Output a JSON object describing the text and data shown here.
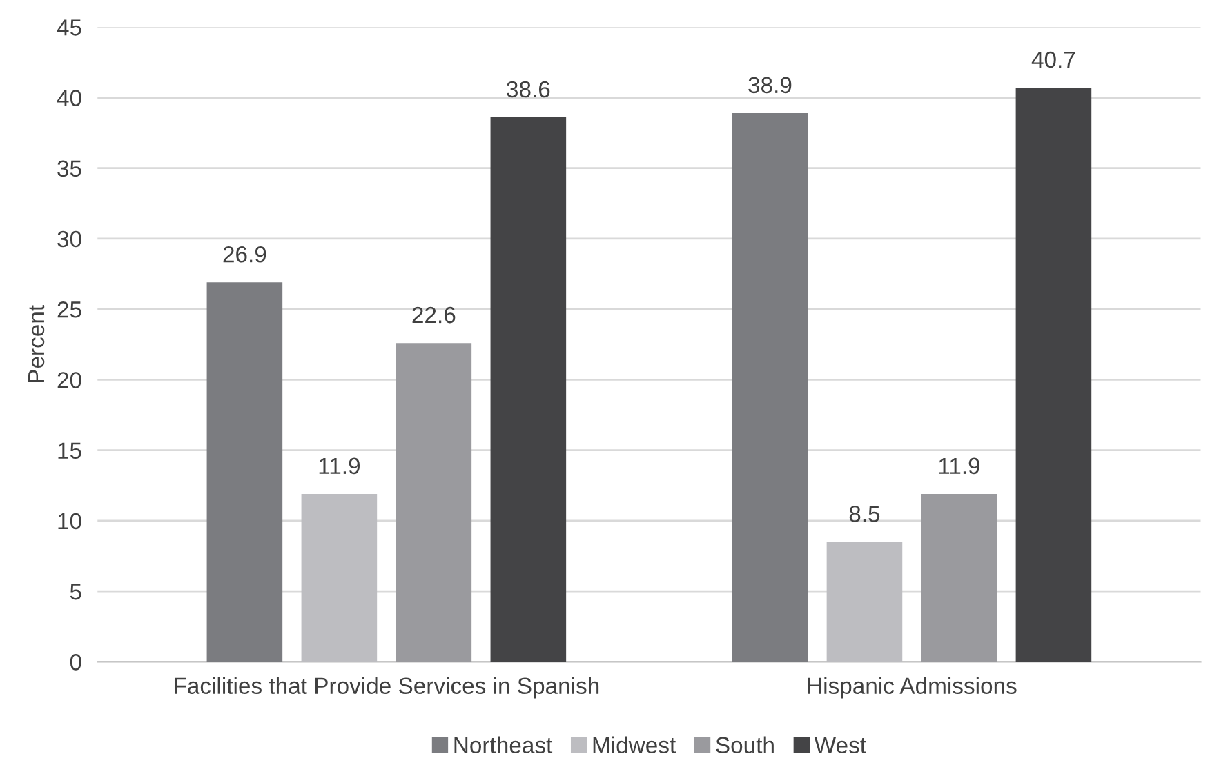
{
  "chart_data": {
    "type": "bar",
    "ylabel": "Percent",
    "categories": [
      "Facilities that Provide Services in Spanish",
      "Hispanic Admissions"
    ],
    "series": [
      {
        "name": "Northeast",
        "color": "#7b7c80",
        "values": [
          26.9,
          38.9
        ]
      },
      {
        "name": "Midwest",
        "color": "#bdbdc1",
        "values": [
          11.9,
          8.5
        ]
      },
      {
        "name": "South",
        "color": "#9a9a9e",
        "values": [
          22.6,
          11.9
        ]
      },
      {
        "name": "West",
        "color": "#444446",
        "values": [
          38.6,
          40.7
        ]
      }
    ],
    "ylim": [
      0,
      45
    ],
    "yticks": [
      0,
      5,
      10,
      15,
      20,
      25,
      30,
      35,
      40,
      45
    ],
    "grid": "y",
    "legend": "bottom",
    "data_labels": true
  }
}
